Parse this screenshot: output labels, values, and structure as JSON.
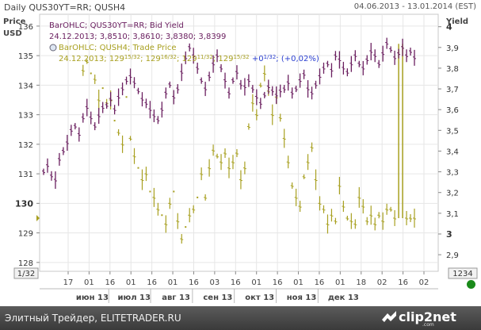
{
  "header": {
    "title": "Daily QUS30YT=RR; QUSH4",
    "date_range": "04.06.2013 - 13.01.2014 (EST)"
  },
  "footer": {
    "credit": "Элитный Трейдер, ELITETRADER.RU",
    "logo_text": "clip2net",
    "logo_url": ".com"
  },
  "colors": {
    "bid_yield": "#6b2060",
    "trade_price": "#a8a020",
    "change_blue": "#2a3fd0",
    "grid": "#e6e6e6",
    "status": "#1a8a1a"
  },
  "chart_data": {
    "type": "line",
    "grid": true,
    "left_axis": {
      "label_top": "Price",
      "label_bottom": "USD",
      "ticks": [
        "136",
        "135",
        "134",
        "133",
        "132",
        "131",
        "130",
        "129",
        "128"
      ],
      "tick_values": [
        136,
        135,
        134,
        133,
        132,
        131,
        130,
        129,
        128
      ],
      "highlight": "130",
      "range": [
        127.7,
        136.4
      ],
      "scale_label": "1/32"
    },
    "right_axis": {
      "label": "Yield",
      "ticks": [
        "4",
        "3,9",
        "3,8",
        "3,7",
        "3,6",
        "3,5",
        "3,4",
        "3,3",
        "3,2",
        "3,1",
        "3",
        "2,9"
      ],
      "tick_values": [
        4.0,
        3.9,
        3.8,
        3.7,
        3.6,
        3.5,
        3.4,
        3.3,
        3.2,
        3.1,
        3.0,
        2.9
      ],
      "highlight_ticks": [
        "4",
        "3"
      ],
      "range": [
        2.82,
        4.06
      ],
      "scale_label": "1234"
    },
    "x_axis": {
      "day_ticks": [
        "17",
        "01",
        "16",
        "01",
        "16",
        "01",
        "16",
        "03",
        "16",
        "01",
        "16",
        "01",
        "16",
        "01",
        "18",
        "02",
        "16",
        "02"
      ],
      "month_labels": [
        "июн 13",
        "июл 13",
        "авг 13",
        "сен 13",
        "окт 13",
        "ноя 13",
        "дек 13"
      ]
    },
    "legend": [
      {
        "name": "BarOHLC; QUS30YT=RR; Bid Yield",
        "detail": "24.12.2013; 3,8510; 3,8610; 3,8380; 3,8399"
      },
      {
        "name": "BarOHLC; QUSH4; Trade Price",
        "detail": "24.12.2013; 129",
        "price_parts": [
          {
            "main": "129",
            "frac": "15/32"
          },
          {
            "main": "129",
            "frac": "16/32"
          },
          {
            "main": "129",
            "frac": "11/32"
          },
          {
            "main": "129",
            "frac": "15/32"
          }
        ],
        "change": "+0",
        "change_frac": "1/32",
        "change_pct": "(+0,02%)"
      }
    ],
    "series": [
      {
        "name": "QUS30YT=RR; Bid Yield",
        "axis": "right",
        "values": [
          3.3,
          3.33,
          3.28,
          3.26,
          3.36,
          3.4,
          3.44,
          3.5,
          3.52,
          3.48,
          3.56,
          3.61,
          3.56,
          3.52,
          3.57,
          3.61,
          3.62,
          3.65,
          3.6,
          3.66,
          3.7,
          3.74,
          3.76,
          3.73,
          3.69,
          3.65,
          3.63,
          3.6,
          3.57,
          3.55,
          3.6,
          3.68,
          3.72,
          3.66,
          3.7,
          3.78,
          3.85,
          3.9,
          3.86,
          3.8,
          3.74,
          3.7,
          3.76,
          3.82,
          3.86,
          3.8,
          3.74,
          3.68,
          3.74,
          3.78,
          3.72,
          3.71,
          3.74,
          3.7,
          3.66,
          3.63,
          3.67,
          3.71,
          3.69,
          3.67,
          3.69,
          3.7,
          3.73,
          3.68,
          3.7,
          3.74,
          3.77,
          3.7,
          3.68,
          3.72,
          3.76,
          3.8,
          3.82,
          3.79,
          3.86,
          3.84,
          3.8,
          3.78,
          3.82,
          3.86,
          3.82,
          3.8,
          3.84,
          3.88,
          3.86,
          3.82,
          3.87,
          3.92,
          3.89,
          3.85,
          3.87,
          3.9,
          3.86,
          3.88,
          3.85
        ]
      },
      {
        "name": "QUSH4; Trade Price",
        "axis": "left",
        "values": [
          null,
          null,
          null,
          null,
          null,
          null,
          null,
          null,
          null,
          null,
          134.5,
          134.8,
          134.4,
          134.2,
          133.5,
          133.9,
          133.4,
          133.5,
          132.8,
          132.4,
          132.0,
          133.6,
          132.2,
          131.6,
          131.2,
          130.8,
          131.0,
          130.4,
          130.2,
          129.8,
          129.6,
          129.3,
          130.0,
          130.4,
          129.4,
          128.8,
          129.2,
          129.6,
          129.8,
          130.2,
          131.0,
          130.2,
          131.2,
          131.8,
          131.6,
          131.4,
          131.7,
          131.2,
          131.4,
          131.7,
          130.8,
          131.2,
          132.6,
          133.4,
          133.0,
          134.0,
          134.4,
          133.8,
          133.0,
          133.6,
          132.9,
          132.2,
          131.4,
          130.6,
          130.2,
          129.9,
          130.9,
          131.4,
          131.9,
          130.8,
          130.0,
          129.8,
          129.3,
          129.6,
          129.4,
          130.6,
          129.9,
          129.5,
          129.4,
          129.3,
          130.2,
          129.9,
          129.4,
          129.6,
          129.3,
          129.6,
          129.4,
          129.8,
          129.8,
          129.5,
          135.4,
          129.5,
          129.5,
          129.5,
          129.5
        ]
      }
    ]
  }
}
